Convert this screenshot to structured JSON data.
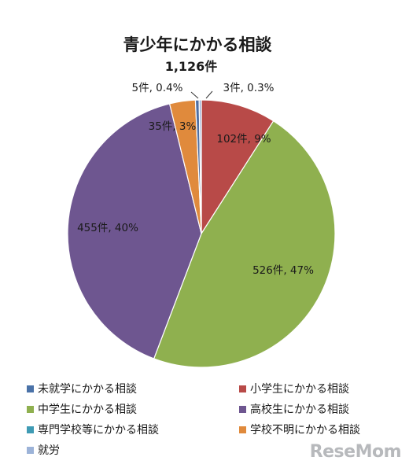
{
  "chart_data": {
    "type": "pie",
    "title": "青少年にかかる相談",
    "subtitle": "1,126件",
    "slices": [
      {
        "name": "未就学にかかる相談",
        "value": 0,
        "label": "",
        "color": "#4a72a8"
      },
      {
        "name": "小学生にかかる相談",
        "value": 102,
        "label": "102件, 9%",
        "color": "#b84a48"
      },
      {
        "name": "中学生にかかる相談",
        "value": 526,
        "label": "526件, 47%",
        "color": "#8fb04f"
      },
      {
        "name": "高校生にかかる相談",
        "value": 455,
        "label": "455件, 40%",
        "color": "#6e5690"
      },
      {
        "name": "専門学校等にかかる相談",
        "value": 0,
        "label": "",
        "color": "#3f9bb4"
      },
      {
        "name": "学校不明にかかる相談",
        "value": 35,
        "label": "35件, 3%",
        "color": "#e08a3c"
      },
      {
        "name": "",
        "value": 5,
        "label": "5件, 0.4%",
        "color": "#4f6fa3"
      },
      {
        "name": "就労",
        "value": 3,
        "label": "3件, 0.3%",
        "color": "#9cb3d8"
      }
    ],
    "legend_position": "bottom"
  },
  "watermark": {
    "text": "ReseMom"
  }
}
